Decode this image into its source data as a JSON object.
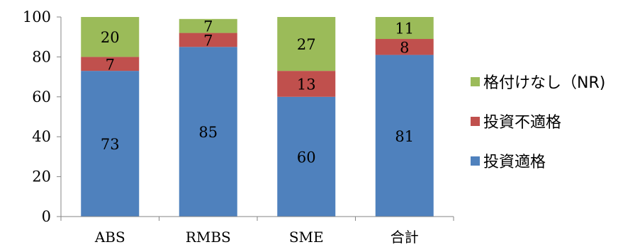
{
  "chart_data": {
    "type": "bar",
    "stacked": true,
    "categories": [
      "ABS",
      "RMBS",
      "SME",
      "合計"
    ],
    "series": [
      {
        "name": "投資適格",
        "color": "#4f81bd",
        "values": [
          73,
          85,
          60,
          81
        ]
      },
      {
        "name": "投資不適格",
        "color": "#c0504d",
        "values": [
          7,
          7,
          13,
          8
        ]
      },
      {
        "name": "格付けなし（NR)",
        "color": "#9bbb59",
        "values": [
          20,
          7,
          27,
          11
        ]
      }
    ],
    "ylim": [
      0,
      100
    ],
    "yticks": [
      0,
      20,
      40,
      60,
      80,
      100
    ],
    "grid": false,
    "legend_position": "right"
  }
}
